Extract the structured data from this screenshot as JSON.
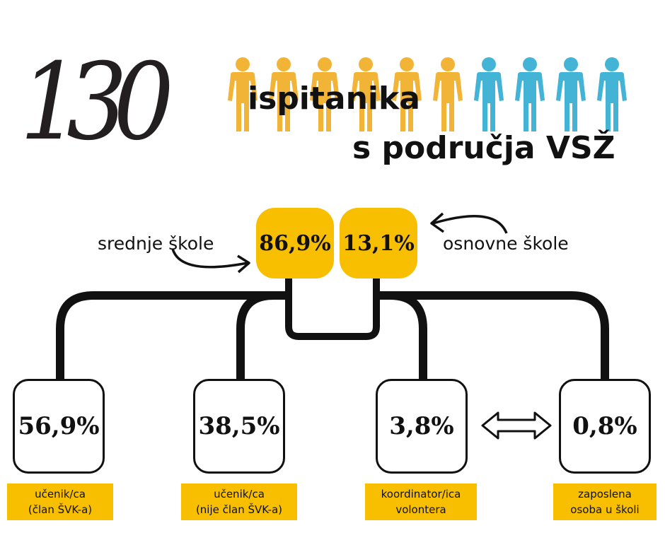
{
  "headline": {
    "number": "130",
    "line1": "ispitanika",
    "line2": "s područja VSŽ"
  },
  "people": {
    "yellow_count": 6,
    "blue_count": 4,
    "yellow_color": "#f2b437",
    "blue_color": "#43b3d6"
  },
  "school_split": [
    {
      "label": "srednje škole",
      "value": "86,9%"
    },
    {
      "label": "osnovne škole",
      "value": "13,1%"
    }
  ],
  "roles": [
    {
      "value": "56,9%",
      "line1": "učenik/ca",
      "line2": "(član ŠVK-a)"
    },
    {
      "value": "38,5%",
      "line1": "učenik/ca",
      "line2": "(nije član ŠVK-a)"
    },
    {
      "value": "3,8%",
      "line1": "koordinator/ica",
      "line2": "volontera"
    },
    {
      "value": "0,8%",
      "line1": "zaposlena",
      "line2": "osoba u školi"
    }
  ],
  "colors": {
    "accent": "#f8bf00",
    "ink": "#111111"
  }
}
